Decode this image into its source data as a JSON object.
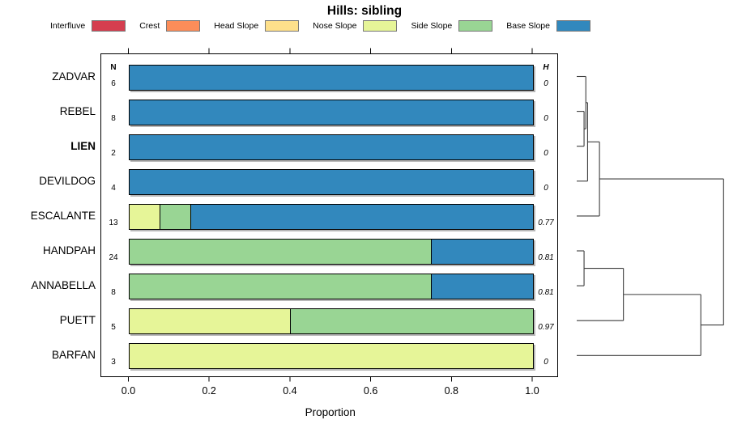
{
  "title": "Hills: sibling",
  "legend": {
    "items": [
      {
        "key": "interfluve",
        "label": "Interfluve",
        "color": "#D53E4F"
      },
      {
        "key": "crest",
        "label": "Crest",
        "color": "#FC8D59"
      },
      {
        "key": "head",
        "label": "Head Slope",
        "color": "#FEE08B"
      },
      {
        "key": "nose",
        "label": "Nose Slope",
        "color": "#E6F598"
      },
      {
        "key": "side",
        "label": "Side Slope",
        "color": "#99D594"
      },
      {
        "key": "base",
        "label": "Base Slope",
        "color": "#3288BD"
      }
    ]
  },
  "columns": {
    "n_header": "N",
    "h_header": "H"
  },
  "chart_data": {
    "type": "bar",
    "orientation": "horizontal",
    "stacked": true,
    "title": "Hills: sibling",
    "xlabel": "Proportion",
    "ylabel": "",
    "xlim": [
      0,
      1
    ],
    "xticks": [
      "0.0",
      "0.2",
      "0.4",
      "0.6",
      "0.8",
      "1.0"
    ],
    "xtick_values": [
      0,
      0.2,
      0.4,
      0.6,
      0.8,
      1.0
    ],
    "legend_position": "top",
    "grid": false,
    "rows": [
      {
        "label": "ZADVAR",
        "bold": false,
        "n": 6,
        "h": "0",
        "segments": [
          {
            "key": "base",
            "value": 1.0
          }
        ]
      },
      {
        "label": "REBEL",
        "bold": false,
        "n": 8,
        "h": "0",
        "segments": [
          {
            "key": "base",
            "value": 1.0
          }
        ]
      },
      {
        "label": "LIEN",
        "bold": true,
        "n": 2,
        "h": "0",
        "segments": [
          {
            "key": "base",
            "value": 1.0
          }
        ]
      },
      {
        "label": "DEVILDOG",
        "bold": false,
        "n": 4,
        "h": "0",
        "segments": [
          {
            "key": "base",
            "value": 1.0
          }
        ]
      },
      {
        "label": "ESCALANTE",
        "bold": false,
        "n": 13,
        "h": "0.77",
        "segments": [
          {
            "key": "nose",
            "value": 0.077
          },
          {
            "key": "side",
            "value": 0.077
          },
          {
            "key": "base",
            "value": 0.846
          }
        ]
      },
      {
        "label": "HANDPAH",
        "bold": false,
        "n": 24,
        "h": "0.81",
        "segments": [
          {
            "key": "side",
            "value": 0.75
          },
          {
            "key": "base",
            "value": 0.25
          }
        ]
      },
      {
        "label": "ANNABELLA",
        "bold": false,
        "n": 8,
        "h": "0.81",
        "segments": [
          {
            "key": "side",
            "value": 0.75
          },
          {
            "key": "base",
            "value": 0.25
          }
        ]
      },
      {
        "label": "PUETT",
        "bold": false,
        "n": 5,
        "h": "0.97",
        "segments": [
          {
            "key": "nose",
            "value": 0.4
          },
          {
            "key": "side",
            "value": 0.6
          }
        ]
      },
      {
        "label": "BARFAN",
        "bold": false,
        "n": 3,
        "h": "0",
        "segments": [
          {
            "key": "nose",
            "value": 1.0
          }
        ]
      }
    ],
    "dendrogram": {
      "merges": [
        {
          "id": "m1",
          "a": "REBEL",
          "b": "LIEN",
          "h": 0.05
        },
        {
          "id": "m2",
          "a": "ZADVAR",
          "b": "m1",
          "h": 0.062
        },
        {
          "id": "m3",
          "a": "m2",
          "b": "DEVILDOG",
          "h": 0.074
        },
        {
          "id": "m4",
          "a": "m3",
          "b": "ESCALANTE",
          "h": 0.155
        },
        {
          "id": "m5",
          "a": "HANDPAH",
          "b": "ANNABELLA",
          "h": 0.05
        },
        {
          "id": "m6",
          "a": "m5",
          "b": "PUETT",
          "h": 0.318
        },
        {
          "id": "m7",
          "a": "m6",
          "b": "BARFAN",
          "h": 0.845
        },
        {
          "id": "m8",
          "a": "m4",
          "b": "m7",
          "h": 1.0
        }
      ]
    }
  }
}
